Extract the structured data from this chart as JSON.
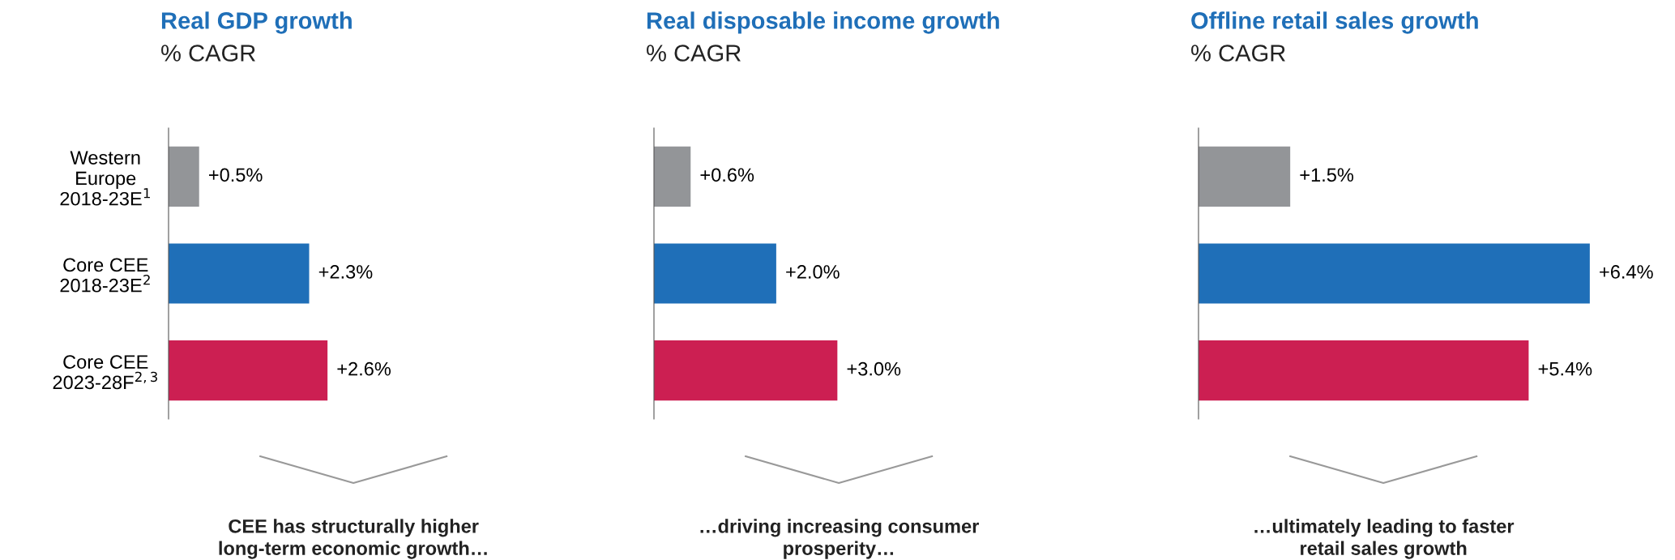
{
  "chart_data": [
    {
      "type": "bar",
      "orientation": "horizontal",
      "title": "Real GDP growth",
      "subtitle": "% CAGR",
      "categories": [
        "Western\nEurope\n2018-23E$^{1}$",
        "Core CEE\n2018-23E$^{2}$",
        "Core CEE\n2023-28F$^{2,3}$"
      ],
      "values": [
        0.5,
        2.3,
        2.6
      ],
      "value_labels": [
        "+0.5%",
        "+2.3%",
        "+2.6%"
      ],
      "colors": [
        "#939598",
        "#1f6fb8",
        "#cc1f52"
      ],
      "tick_labels": "y",
      "annotations": [
        "CEE has structurally higher\nlong-term economic growth…"
      ]
    },
    {
      "type": "bar",
      "orientation": "horizontal",
      "title": "Real disposable income growth",
      "subtitle": "% CAGR",
      "categories": [
        null,
        null,
        null
      ],
      "values": [
        0.6,
        2.0,
        3.0
      ],
      "value_labels": [
        "+0.6%",
        "+2.0%",
        "+3.0%"
      ],
      "colors": [
        "#939598",
        "#1f6fb8",
        "#cc1f52"
      ],
      "tick_labels": false,
      "annotations": [
        "…driving increasing consumer\nprosperity…"
      ]
    },
    {
      "type": "bar",
      "orientation": "horizontal",
      "title": "Offline retail sales growth",
      "subtitle": "% CAGR",
      "categories": [
        null,
        null,
        null
      ],
      "values": [
        1.5,
        6.4,
        5.4
      ],
      "value_labels": [
        "+1.5%",
        "+6.4%",
        "+5.4%"
      ],
      "colors": [
        "#939598",
        "#1f6fb8",
        "#cc1f52"
      ],
      "tick_labels": false,
      "annotations": [
        "…ultimately leading to faster\nretail sales growth"
      ]
    }
  ]
}
